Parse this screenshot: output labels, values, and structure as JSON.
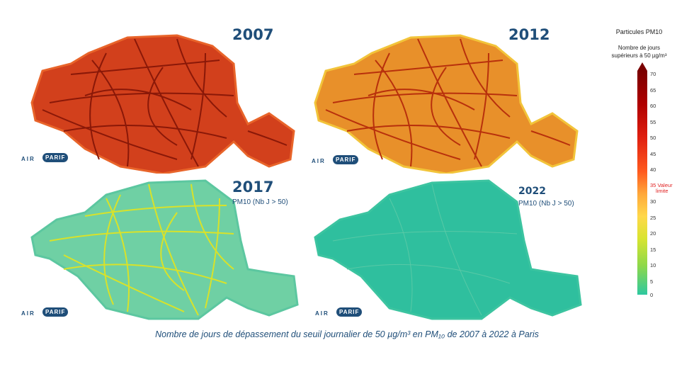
{
  "panels": [
    {
      "year": "2007",
      "subtitle": "",
      "logo_air": "AIR",
      "logo_parif": "PARIF"
    },
    {
      "year": "2012",
      "subtitle": "",
      "logo_air": "AIR",
      "logo_parif": "PARIF"
    },
    {
      "year": "2017",
      "subtitle": "PM10 (Nb J > 50)",
      "logo_air": "AIR",
      "logo_parif": "PARIF"
    },
    {
      "year": "2022",
      "subtitle": "PM10 (Nb J > 50)",
      "logo_air": "AIR",
      "logo_parif": "PARIF"
    }
  ],
  "map_colors": {
    "2007": {
      "base": "#d2401c",
      "edge": "#e8642a",
      "roads": "#8a1808"
    },
    "2012": {
      "base": "#e8902a",
      "edge": "#f2c43a",
      "roads": "#b8300c"
    },
    "2017": {
      "base": "#6fd0a4",
      "edge": "#5cc7a0",
      "roads": "#d8e22a"
    },
    "2022": {
      "base": "#2fbf9e",
      "edge": "#3cc4a0",
      "roads": "#58c9a6"
    }
  },
  "legend": {
    "title": "Particules PM10",
    "subtitle_line1": "Nombre de jours",
    "subtitle_line2": "supérieurs à 50 µg/m³",
    "ticks": [
      "70",
      "65",
      "60",
      "55",
      "50",
      "45",
      "40",
      "30",
      "25",
      "20",
      "15",
      "10",
      "5",
      "0"
    ],
    "limit_value": "35",
    "limit_label_1": "Valeur",
    "limit_label_2": "limite",
    "colors": [
      "#7a0000",
      "#b00000",
      "#e02010",
      "#ff5a1e",
      "#ffa83a",
      "#ffd84a",
      "#d8e430",
      "#8ed84a",
      "#2ec8a0"
    ]
  },
  "caption": "Nombre de jours de dépassement du seuil journalier de 50 µg/m³ en PM₁₀ de 2007 à 2022 à Paris"
}
